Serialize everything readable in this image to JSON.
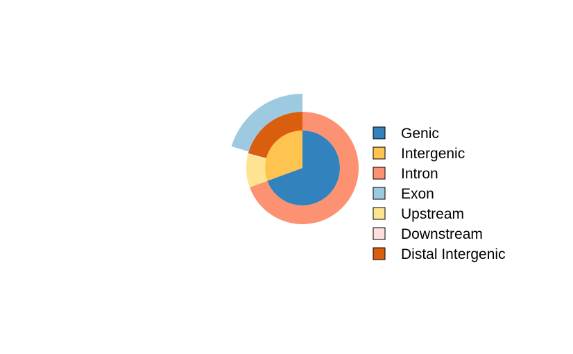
{
  "chart_data": {
    "type": "pie",
    "subtype": "nested-donut",
    "title": "",
    "legend_position": "right",
    "rings": [
      {
        "level": "inner",
        "slices": [
          {
            "label": "Genic",
            "value": 0.694,
            "color": "#3182BD"
          },
          {
            "label": "Intergenic",
            "value": 0.306,
            "color": "#FEC44F"
          }
        ]
      },
      {
        "level": "middle",
        "slices": [
          {
            "label": "Intron",
            "value": 0.694,
            "color": "#FC9272"
          },
          {
            "label": "Upstream",
            "value": 0.095,
            "color": "#FEE391"
          },
          {
            "label": "Downstream",
            "value": 0.003,
            "color": "#FDE0DD"
          },
          {
            "label": "Distal Intergenic",
            "value": 0.208,
            "color": "#D95F0E"
          }
        ]
      },
      {
        "level": "outer",
        "slices": [
          {
            "label": "Exon",
            "value": 0.203,
            "color": "#9ECAE1"
          }
        ]
      }
    ],
    "legend": [
      {
        "label": "Genic",
        "color": "#3182BD"
      },
      {
        "label": "Intergenic",
        "color": "#FEC44F"
      },
      {
        "label": "Intron",
        "color": "#FC9272"
      },
      {
        "label": "Exon",
        "color": "#9ECAE1"
      },
      {
        "label": "Upstream",
        "color": "#FEE391"
      },
      {
        "label": "Downstream",
        "color": "#FDE0DD"
      },
      {
        "label": "Distal Intergenic",
        "color": "#D95F0E"
      }
    ]
  }
}
